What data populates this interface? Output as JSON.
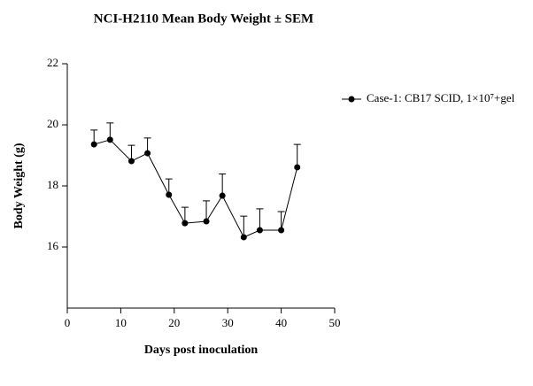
{
  "chart_data": {
    "type": "line",
    "title": "NCI-H2110 Mean Body Weight ± SEM",
    "x_label": "Days post inoculation",
    "y_label": "Body Weight (g)",
    "x": [
      5,
      8,
      12,
      15,
      19,
      22,
      26,
      29,
      33,
      36,
      40,
      43
    ],
    "series": [
      {
        "name": "Case-1: CB17 SCID, 1×10⁷+gel",
        "color": "#000000",
        "values": [
          19.36,
          19.51,
          18.81,
          19.07,
          17.71,
          16.78,
          16.84,
          17.68,
          16.32,
          16.55,
          16.55,
          18.61
        ],
        "errors": [
          0.47,
          0.55,
          0.52,
          0.5,
          0.52,
          0.52,
          0.67,
          0.71,
          0.69,
          0.7,
          0.61,
          0.75
        ]
      }
    ],
    "xlim": [
      0,
      50
    ],
    "xticks": [
      0,
      10,
      20,
      30,
      40,
      50
    ],
    "ylim": [
      14,
      22
    ],
    "yticks": [
      16,
      18,
      20,
      22
    ],
    "legend": "right"
  }
}
